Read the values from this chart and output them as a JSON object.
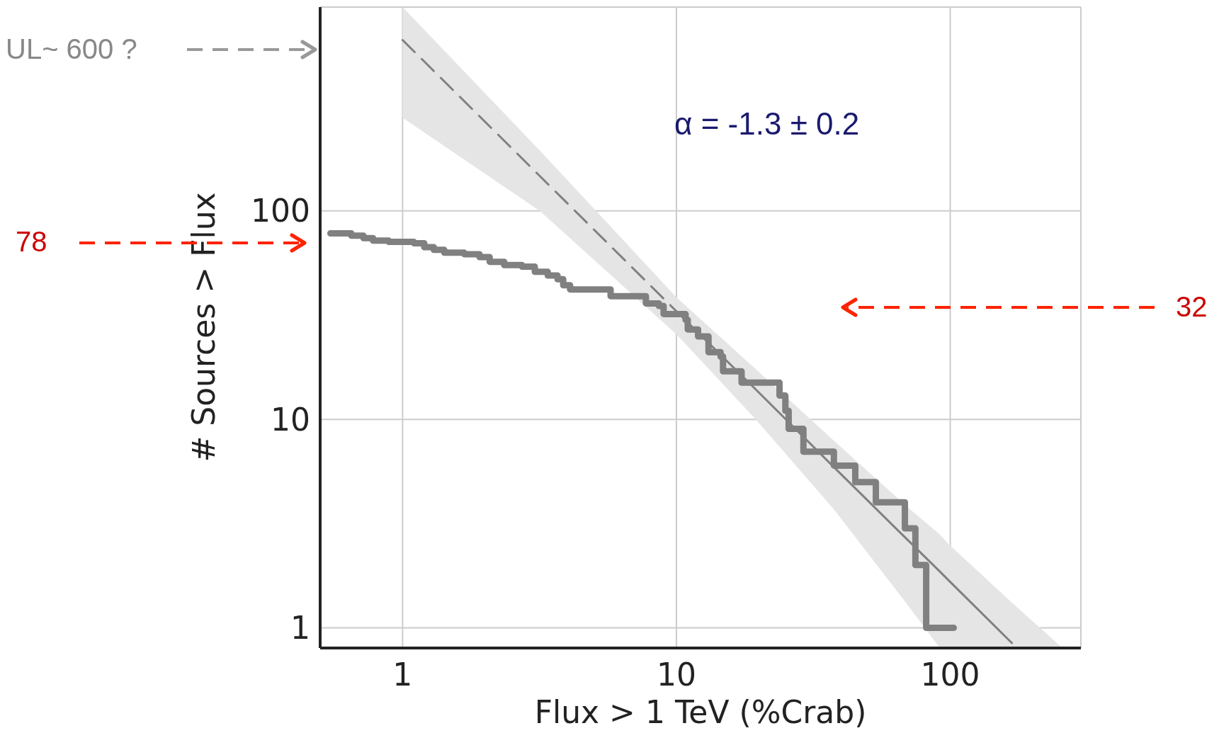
{
  "chart_data": {
    "type": "step",
    "xlabel": "Flux > 1 TeV (%Crab)",
    "ylabel": "# Sources > Flux",
    "log": "xy",
    "grid": true,
    "legend": false,
    "marker": "none",
    "xlim": [
      0.5,
      300
    ],
    "xticks": [
      1,
      10,
      100
    ],
    "ylim": [
      0.8,
      950
    ],
    "yticks": [
      1,
      10,
      100
    ],
    "series": [
      {
        "color": "#808080",
        "x": [
          0.545,
          0.65,
          0.72,
          0.78,
          0.89,
          1.1,
          1.2,
          1.3,
          1.42,
          1.68,
          1.91,
          2.08,
          2.35,
          2.73,
          3.04,
          3.39,
          3.68,
          3.86,
          4.09,
          5.75,
          7.74,
          8.63,
          8.98,
          10.8,
          11,
          12,
          13.1,
          14.5,
          14.8,
          17.3,
          23.8,
          25,
          25.7,
          29.1,
          37.6,
          45,
          53.5,
          68.3,
          74.6,
          81.7,
          103
        ],
        "values": [
          78,
          76,
          74,
          72,
          71,
          70,
          67,
          65,
          63,
          62,
          60,
          57,
          55,
          54,
          51,
          49,
          47,
          44,
          42,
          39,
          36,
          35,
          32,
          30,
          27,
          25,
          21,
          20,
          17,
          15,
          13,
          11,
          9,
          7,
          6,
          5,
          4,
          3,
          2,
          1,
          1
        ]
      },
      {
        "type": "line",
        "line_style": "dashed",
        "color": "#808080",
        "x": [
          1,
          3.17,
          10
        ],
        "values": [
          660,
          147,
          33
        ],
        "lower": [
          280,
          100,
          25.6
        ],
        "upper": [
          950,
          195,
          38.5
        ]
      },
      {
        "type": "line",
        "line_style": "solid",
        "color": "#808080",
        "x": [
          10,
          19.5,
          37.6,
          69.5,
          91.7,
          98.6,
          168,
          257
        ],
        "values": [
          33,
          13.9,
          5.9,
          2.66,
          1.86,
          1.69,
          0.845,
          null
        ],
        "lower": [
          25.6,
          10,
          3.7,
          1.3,
          0.8,
          0.8,
          0.8,
          0.8
        ],
        "upper": [
          38.5,
          17.4,
          7.9,
          3.81,
          2.8,
          2.52,
          1.32,
          0.8
        ]
      }
    ],
    "annotations": [
      "UL~ 600 ?",
      "78",
      "32",
      "α = -1.3 ± 0.2"
    ]
  }
}
